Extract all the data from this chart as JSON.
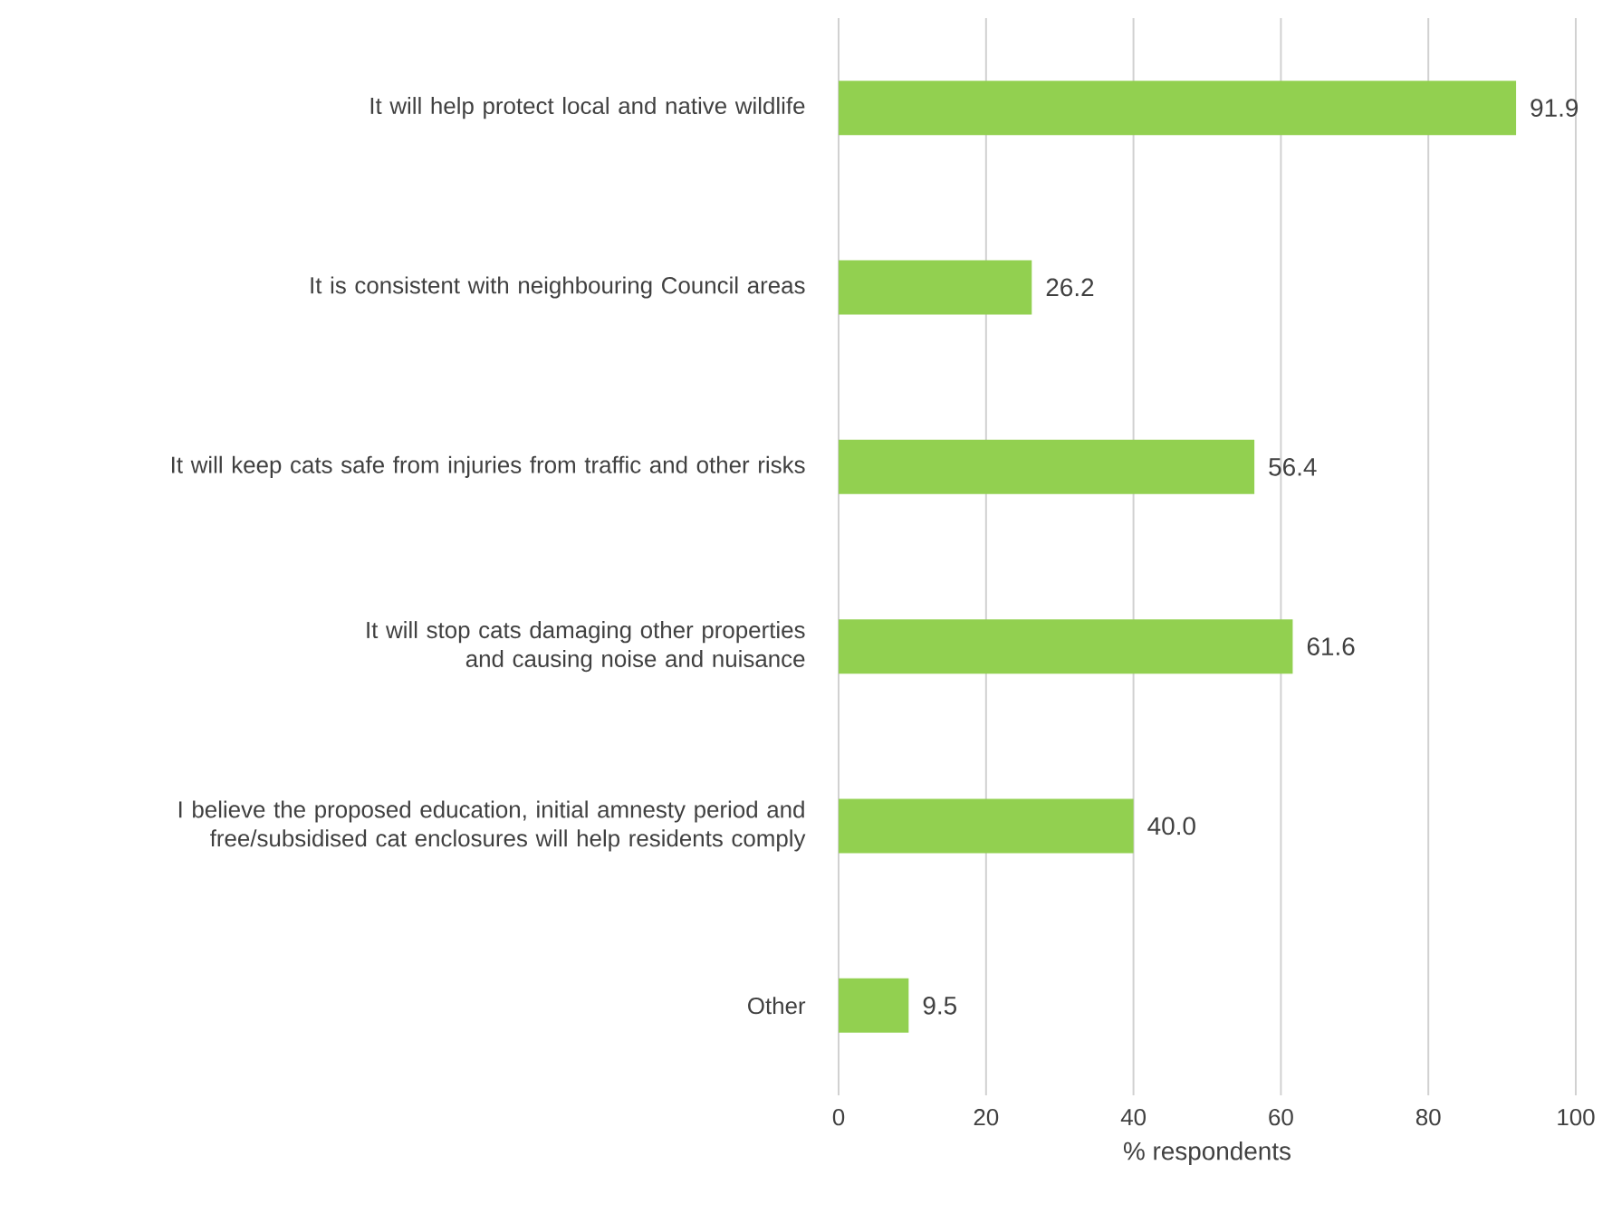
{
  "chart_data": {
    "type": "bar",
    "orientation": "horizontal",
    "categories": [
      "It will help protect local and native wildlife",
      "It is consistent with neighbouring Council areas",
      "It will keep cats safe from injuries from traffic and other risks",
      "It will stop cats damaging other properties and causing noise and nuisance",
      "I believe the proposed education, initial amnesty period and free/subsidised cat enclosures will help residents comply",
      "Other"
    ],
    "values": [
      91.9,
      26.2,
      56.4,
      61.6,
      40.0,
      9.5
    ],
    "value_labels": [
      "91.9",
      "26.2",
      "56.4",
      "61.6",
      "40.0",
      "9.5"
    ],
    "color": "#92d050",
    "xlabel": "% respondents",
    "xlim": [
      0,
      100
    ],
    "xticks": [
      0,
      20,
      40,
      60,
      80,
      100
    ],
    "grid": "x"
  }
}
